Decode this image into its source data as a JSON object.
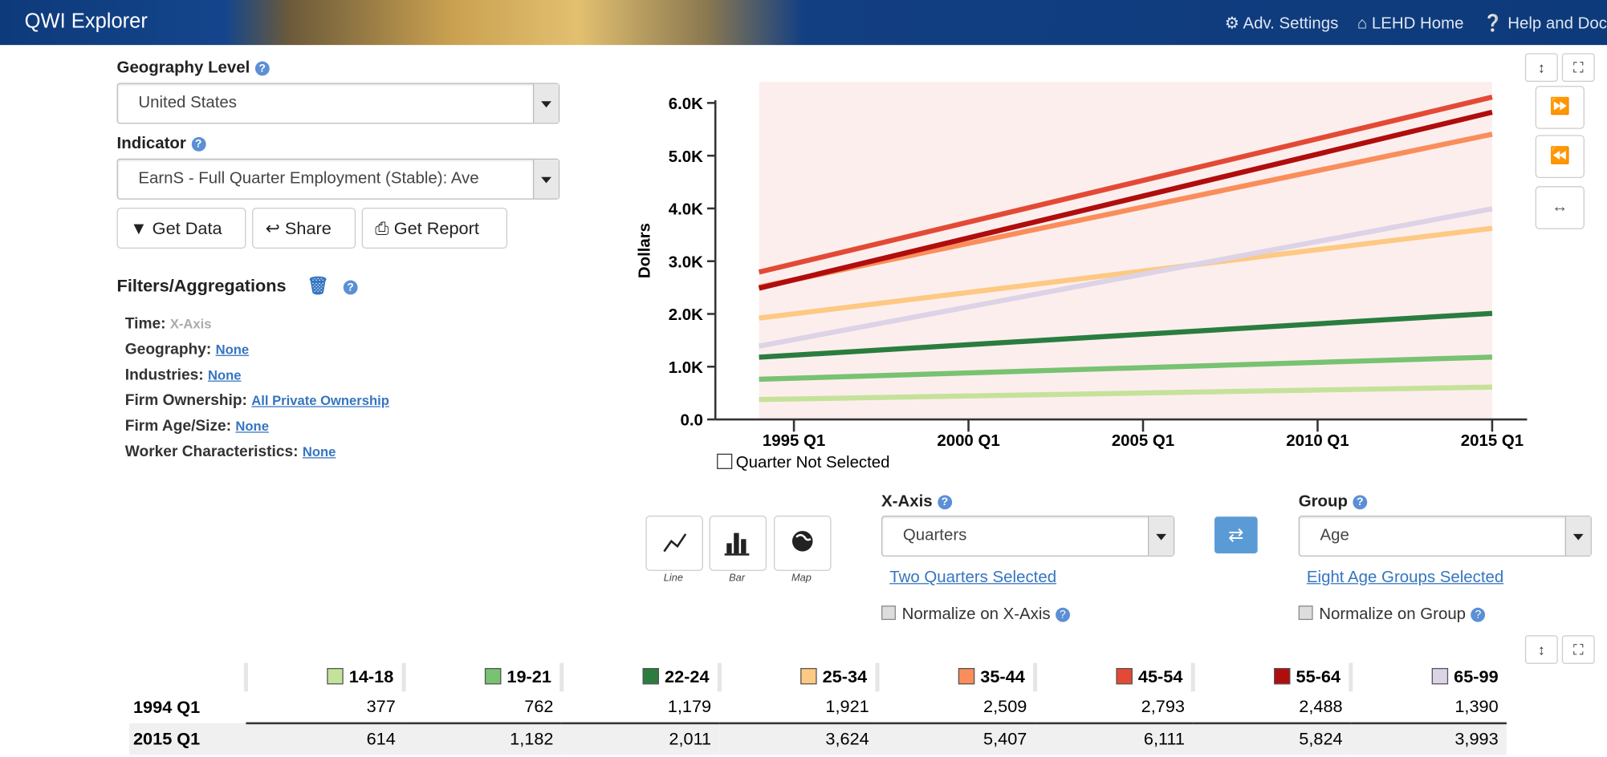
{
  "header": {
    "title": "QWI Explorer",
    "nav": [
      "Adv. Settings",
      "LEHD Home",
      "Help and Doc"
    ]
  },
  "form": {
    "geography_label": "Geography Level",
    "geography_value": "United States",
    "indicator_label": "Indicator",
    "indicator_value": "EarnS - Full Quarter Employment (Stable): Ave",
    "buttons": [
      "Get Data",
      "Share",
      "Get Report"
    ],
    "filters_title": "Filters/Aggregations",
    "filters": [
      {
        "label": "Time:",
        "value": "X-Axis"
      },
      {
        "label": "Geography:",
        "value": "None"
      },
      {
        "label": "Industries:",
        "value": "None"
      },
      {
        "label": "Firm Ownership:",
        "value": "All Private Ownership"
      },
      {
        "label": "Firm Age/Size:",
        "value": "None"
      },
      {
        "label": "Worker Characteristics:",
        "value": "None"
      }
    ]
  },
  "controls": {
    "chart_types": [
      "Line",
      "Bar",
      "Map"
    ],
    "xaxis_label": "X-Axis",
    "xaxis_value": "Quarters",
    "xaxis_link": "Two Quarters Selected",
    "xaxis_normalize": "Normalize on X-Axis",
    "group_label": "Group",
    "group_value": "Age",
    "group_link": "Eight Age Groups Selected",
    "group_normalize": "Normalize on Group"
  },
  "chart_data": {
    "type": "line",
    "y_label": "Dollars",
    "legend_note": "Quarter Not Selected",
    "x": [
      "1994 Q1",
      "2015 Q1"
    ],
    "xlim": [
      "1992 Q4",
      "2016 Q1"
    ],
    "xticks": [
      "1995 Q1",
      "2000 Q1",
      "2005 Q1",
      "2010 Q1",
      "2015 Q1"
    ],
    "ylim": [
      0,
      6400
    ],
    "yticks": [
      {
        "value": 0,
        "label": "0.0"
      },
      {
        "value": 1000,
        "label": "1.0K"
      },
      {
        "value": 2000,
        "label": "2.0K"
      },
      {
        "value": 3000,
        "label": "3.0K"
      },
      {
        "value": 4000,
        "label": "4.0K"
      },
      {
        "value": 5000,
        "label": "5.0K"
      },
      {
        "value": 6000,
        "label": "6.0K"
      }
    ],
    "series": [
      {
        "name": "14-18",
        "color": "#c5e29a",
        "values": [
          377,
          614
        ],
        "value_labels": [
          "377",
          "614"
        ]
      },
      {
        "name": "19-21",
        "color": "#78c272",
        "values": [
          762,
          1182
        ],
        "value_labels": [
          "762",
          "1,182"
        ]
      },
      {
        "name": "22-24",
        "color": "#2a7d3e",
        "values": [
          1179,
          2011
        ],
        "value_labels": [
          "1,179",
          "2,011"
        ]
      },
      {
        "name": "25-34",
        "color": "#fdc983",
        "values": [
          1921,
          3624
        ],
        "value_labels": [
          "1,921",
          "3,624"
        ]
      },
      {
        "name": "35-44",
        "color": "#f98e5b",
        "values": [
          2509,
          5407
        ],
        "value_labels": [
          "2,509",
          "5,407"
        ]
      },
      {
        "name": "45-54",
        "color": "#e34a36",
        "values": [
          2793,
          6111
        ],
        "value_labels": [
          "2,793",
          "6,111"
        ]
      },
      {
        "name": "55-64",
        "color": "#b00d0d",
        "values": [
          2488,
          5824
        ],
        "value_labels": [
          "2,488",
          "5,824"
        ]
      },
      {
        "name": "65-99",
        "color": "#dcd3e6",
        "values": [
          1390,
          3993
        ],
        "value_labels": [
          "1,390",
          "3,993"
        ]
      }
    ]
  }
}
